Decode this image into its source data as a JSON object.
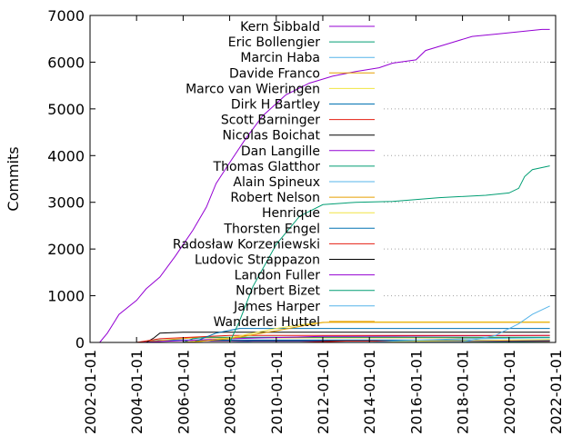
{
  "chart_data": {
    "type": "line",
    "title": "",
    "xlabel": "",
    "ylabel": "Commits",
    "xlim": [
      "2002-01-01",
      "2022-01-01"
    ],
    "ylim": [
      0,
      7000
    ],
    "x_ticks": [
      "2002-01-01",
      "2004-01-01",
      "2006-01-01",
      "2008-01-01",
      "2010-01-01",
      "2012-01-01",
      "2014-01-01",
      "2016-01-01",
      "2018-01-01",
      "2020-01-01",
      "2022-01-01"
    ],
    "y_ticks": [
      0,
      1000,
      2000,
      3000,
      4000,
      5000,
      6000,
      7000
    ],
    "grid": "horizontal dotted at y ticks (right of legend)",
    "legend_position": "top-left, inside plot",
    "series": [
      {
        "name": "Kern Sibbald",
        "color": "#9400d3",
        "points": [
          [
            "2002-06-01",
            0
          ],
          [
            "2002-10-01",
            200
          ],
          [
            "2003-04-01",
            600
          ],
          [
            "2004-01-01",
            900
          ],
          [
            "2004-06-01",
            1150
          ],
          [
            "2005-01-01",
            1400
          ],
          [
            "2005-09-01",
            1850
          ],
          [
            "2006-06-01",
            2400
          ],
          [
            "2007-01-01",
            2900
          ],
          [
            "2007-06-01",
            3400
          ],
          [
            "2008-01-01",
            3850
          ],
          [
            "2008-09-01",
            4350
          ],
          [
            "2009-06-01",
            4850
          ],
          [
            "2010-06-01",
            5300
          ],
          [
            "2011-06-01",
            5550
          ],
          [
            "2012-06-01",
            5700
          ],
          [
            "2013-06-01",
            5800
          ],
          [
            "2014-06-01",
            5880
          ],
          [
            "2015-01-01",
            5980
          ],
          [
            "2016-01-01",
            6050
          ],
          [
            "2016-06-01",
            6250
          ],
          [
            "2017-06-01",
            6400
          ],
          [
            "2018-06-01",
            6550
          ],
          [
            "2019-06-01",
            6600
          ],
          [
            "2020-06-01",
            6650
          ],
          [
            "2021-06-01",
            6700
          ],
          [
            "2021-10-01",
            6700
          ]
        ]
      },
      {
        "name": "Eric Bollengier",
        "color": "#009e73",
        "points": [
          [
            "2006-01-01",
            0
          ],
          [
            "2008-01-01",
            0
          ],
          [
            "2008-06-01",
            450
          ],
          [
            "2009-01-01",
            1200
          ],
          [
            "2010-01-01",
            2100
          ],
          [
            "2011-01-01",
            2700
          ],
          [
            "2012-01-01",
            2950
          ],
          [
            "2013-06-01",
            3000
          ],
          [
            "2015-01-01",
            3020
          ],
          [
            "2017-01-01",
            3100
          ],
          [
            "2019-01-01",
            3150
          ],
          [
            "2020-01-01",
            3200
          ],
          [
            "2020-06-01",
            3300
          ],
          [
            "2020-09-01",
            3550
          ],
          [
            "2021-01-01",
            3700
          ],
          [
            "2021-10-01",
            3780
          ]
        ]
      },
      {
        "name": "Marcin Haba",
        "color": "#56b4e9",
        "points": [
          [
            "2014-06-01",
            0
          ],
          [
            "2016-01-01",
            5
          ],
          [
            "2018-01-01",
            10
          ],
          [
            "2019-06-01",
            150
          ],
          [
            "2020-06-01",
            400
          ],
          [
            "2021-01-01",
            600
          ],
          [
            "2021-10-01",
            780
          ]
        ]
      },
      {
        "name": "Davide Franco",
        "color": "#e69f00",
        "points": [
          [
            "2006-01-01",
            0
          ],
          [
            "2008-01-01",
            80
          ],
          [
            "2010-01-01",
            250
          ],
          [
            "2011-06-01",
            380
          ],
          [
            "2012-01-01",
            430
          ],
          [
            "2021-10-01",
            430
          ]
        ]
      },
      {
        "name": "Marco van Wieringen",
        "color": "#f0e442",
        "points": [
          [
            "2006-06-01",
            0
          ],
          [
            "2008-01-01",
            100
          ],
          [
            "2010-01-01",
            300
          ],
          [
            "2011-06-01",
            400
          ],
          [
            "2012-06-01",
            440
          ],
          [
            "2021-10-01",
            440
          ]
        ]
      },
      {
        "name": "Dirk H Bartley",
        "color": "#0072b2",
        "points": [
          [
            "2006-06-01",
            0
          ],
          [
            "2007-06-01",
            200
          ],
          [
            "2008-06-01",
            300
          ],
          [
            "2021-10-01",
            300
          ]
        ]
      },
      {
        "name": "Scott Barninger",
        "color": "#e51e10",
        "points": [
          [
            "2004-01-01",
            0
          ],
          [
            "2005-01-01",
            80
          ],
          [
            "2008-01-01",
            150
          ],
          [
            "2021-10-01",
            150
          ]
        ]
      },
      {
        "name": "Nicolas Boichat",
        "color": "#000000",
        "points": [
          [
            "2004-06-01",
            0
          ],
          [
            "2004-10-01",
            100
          ],
          [
            "2005-01-01",
            200
          ],
          [
            "2006-01-01",
            220
          ],
          [
            "2021-10-01",
            220
          ]
        ]
      },
      {
        "name": "Dan Langille",
        "color": "#9400d3",
        "points": [
          [
            "2004-01-01",
            0
          ],
          [
            "2008-01-01",
            80
          ],
          [
            "2012-01-01",
            130
          ],
          [
            "2021-10-01",
            150
          ]
        ]
      },
      {
        "name": "Thomas Glatthor",
        "color": "#009e73",
        "points": [
          [
            "2006-01-01",
            0
          ],
          [
            "2006-06-01",
            80
          ],
          [
            "2007-01-01",
            110
          ],
          [
            "2021-10-01",
            110
          ]
        ]
      },
      {
        "name": "Alain Spineux",
        "color": "#56b4e9",
        "points": [
          [
            "2014-01-01",
            0
          ],
          [
            "2015-01-01",
            30
          ],
          [
            "2018-01-01",
            80
          ],
          [
            "2021-10-01",
            100
          ]
        ]
      },
      {
        "name": "Robert Nelson",
        "color": "#e69f00",
        "points": [
          [
            "2004-01-01",
            0
          ],
          [
            "2005-06-01",
            60
          ],
          [
            "2006-06-01",
            100
          ],
          [
            "2021-10-01",
            100
          ]
        ]
      },
      {
        "name": "Henrique",
        "color": "#f0e442",
        "points": [
          [
            "2014-01-01",
            0
          ],
          [
            "2016-01-01",
            30
          ],
          [
            "2021-10-01",
            60
          ]
        ]
      },
      {
        "name": "Thorsten Engel",
        "color": "#0072b2",
        "points": [
          [
            "2004-01-01",
            0
          ],
          [
            "2005-01-01",
            50
          ],
          [
            "2021-10-01",
            50
          ]
        ]
      },
      {
        "name": "Radosław Korzeniewski",
        "color": "#e51e10",
        "points": [
          [
            "2011-01-01",
            0
          ],
          [
            "2013-01-01",
            30
          ],
          [
            "2021-10-01",
            45
          ]
        ]
      },
      {
        "name": "Ludovic Strappazon",
        "color": "#000000",
        "points": [
          [
            "2006-01-01",
            0
          ],
          [
            "2007-01-01",
            40
          ],
          [
            "2021-10-01",
            40
          ]
        ]
      },
      {
        "name": "Landon Fuller",
        "color": "#9400d3",
        "points": [
          [
            "2006-01-01",
            0
          ],
          [
            "2007-01-01",
            35
          ],
          [
            "2021-10-01",
            35
          ]
        ]
      },
      {
        "name": "Norbert Bizet",
        "color": "#009e73",
        "points": [
          [
            "2018-01-01",
            0
          ],
          [
            "2020-01-01",
            15
          ],
          [
            "2021-10-01",
            30
          ]
        ]
      },
      {
        "name": "James Harper",
        "color": "#56b4e9",
        "points": [
          [
            "2008-01-01",
            0
          ],
          [
            "2009-01-01",
            25
          ],
          [
            "2021-10-01",
            25
          ]
        ]
      },
      {
        "name": "Wanderlei Huttel",
        "color": "#e69f00",
        "points": [
          [
            "2015-01-01",
            0
          ],
          [
            "2017-01-01",
            15
          ],
          [
            "2021-10-01",
            20
          ]
        ]
      }
    ]
  }
}
